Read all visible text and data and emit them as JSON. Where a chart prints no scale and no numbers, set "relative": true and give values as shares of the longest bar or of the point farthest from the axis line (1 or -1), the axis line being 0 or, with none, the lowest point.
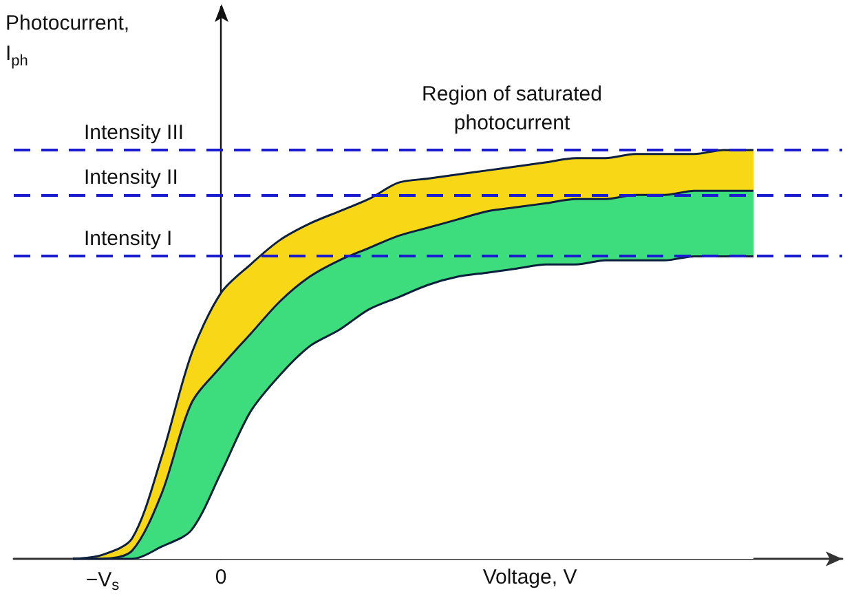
{
  "chart_data": {
    "type": "area",
    "relative": true,
    "ylabel": "Photocurrent,\nI$_{ph}$",
    "xlabel": "Voltage, V",
    "annotations": [
      "Region of saturated\nphotocurrent"
    ],
    "categories": [
      null,
      null,
      null,
      "−V$_{s}$",
      null,
      null,
      null,
      "0",
      null,
      null,
      null,
      null,
      null,
      null,
      null,
      null,
      null,
      null,
      null,
      null,
      null,
      null,
      null,
      null,
      null,
      null,
      null,
      null,
      null
    ],
    "marker": "none",
    "series": [
      {
        "color": "#f7d716",
        "values": [
          null,
          null,
          0,
          0.01,
          0.05,
          0.25,
          0.5,
          0.65,
          0.72,
          0.78,
          0.82,
          0.85,
          0.88,
          0.92,
          0.93,
          0.94,
          0.95,
          0.96,
          0.97,
          0.98,
          0.98,
          0.99,
          0.99,
          0.99,
          1.0,
          1.0,
          null,
          null,
          null
        ]
      },
      {
        "color": "#3ddc7c",
        "values": [
          null,
          null,
          0,
          0,
          0.02,
          0.16,
          0.38,
          0.47,
          0.55,
          0.63,
          0.69,
          0.73,
          0.76,
          0.79,
          0.81,
          0.83,
          0.85,
          0.86,
          0.87,
          0.88,
          0.88,
          0.89,
          0.89,
          0.9,
          0.9,
          0.9,
          null,
          null,
          null
        ]
      },
      {
        "color": "#ffffff",
        "values": [
          null,
          null,
          0,
          0,
          0,
          0.03,
          0.07,
          0.21,
          0.36,
          0.45,
          0.52,
          0.56,
          0.61,
          0.64,
          0.67,
          0.69,
          0.7,
          0.71,
          0.72,
          0.72,
          0.73,
          0.73,
          0.73,
          0.74,
          0.74,
          0.74,
          null,
          null,
          null
        ]
      }
    ],
    "ref_lines": [
      {
        "axis": "y",
        "value": 1,
        "label": "Intensity III",
        "color": "#1a1ad0",
        "line_style": "dashed"
      },
      {
        "axis": "y",
        "value": 0.89,
        "label": "Intensity II",
        "color": "#1a1ad0",
        "line_style": "dashed"
      },
      {
        "axis": "y",
        "value": 0.74,
        "label": "Intensity I",
        "color": "#1a1ad0",
        "line_style": "dashed"
      }
    ]
  }
}
